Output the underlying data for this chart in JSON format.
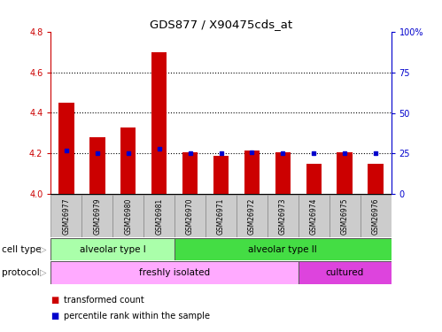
{
  "title": "GDS877 / X90475cds_at",
  "samples": [
    "GSM26977",
    "GSM26979",
    "GSM26980",
    "GSM26981",
    "GSM26970",
    "GSM26971",
    "GSM26972",
    "GSM26973",
    "GSM26974",
    "GSM26975",
    "GSM26976"
  ],
  "transformed_count": [
    4.45,
    4.28,
    4.33,
    4.7,
    4.205,
    4.19,
    4.215,
    4.205,
    4.15,
    4.205,
    4.15
  ],
  "percentile_rank": [
    27,
    25,
    25,
    28,
    25,
    25,
    26,
    25,
    25,
    25,
    25
  ],
  "ylim_left": [
    4.0,
    4.8
  ],
  "ylim_right": [
    0,
    100
  ],
  "yticks_left": [
    4.0,
    4.2,
    4.4,
    4.6,
    4.8
  ],
  "yticks_right": [
    0,
    25,
    50,
    75,
    100
  ],
  "ytick_labels_right": [
    "0",
    "25",
    "50",
    "75",
    "100%"
  ],
  "bar_color": "#cc0000",
  "dot_color": "#0000cc",
  "cell_type_groups": [
    {
      "label": "alveolar type I",
      "start": 0,
      "end": 4,
      "color": "#aaffaa"
    },
    {
      "label": "alveolar type II",
      "start": 4,
      "end": 11,
      "color": "#44dd44"
    }
  ],
  "protocol_groups": [
    {
      "label": "freshly isolated",
      "start": 0,
      "end": 8,
      "color": "#ffaaff"
    },
    {
      "label": "cultured",
      "start": 8,
      "end": 11,
      "color": "#dd44dd"
    }
  ],
  "left_label_color": "#cc0000",
  "right_label_color": "#0000cc",
  "tick_label_bg": "#cccccc",
  "cell_type_label": "cell type",
  "protocol_label": "protocol",
  "legend_items": [
    {
      "color": "#cc0000",
      "label": "transformed count"
    },
    {
      "color": "#0000cc",
      "label": "percentile rank within the sample"
    }
  ],
  "dotted_lines": [
    4.2,
    4.4,
    4.6
  ],
  "bar_width": 0.5
}
